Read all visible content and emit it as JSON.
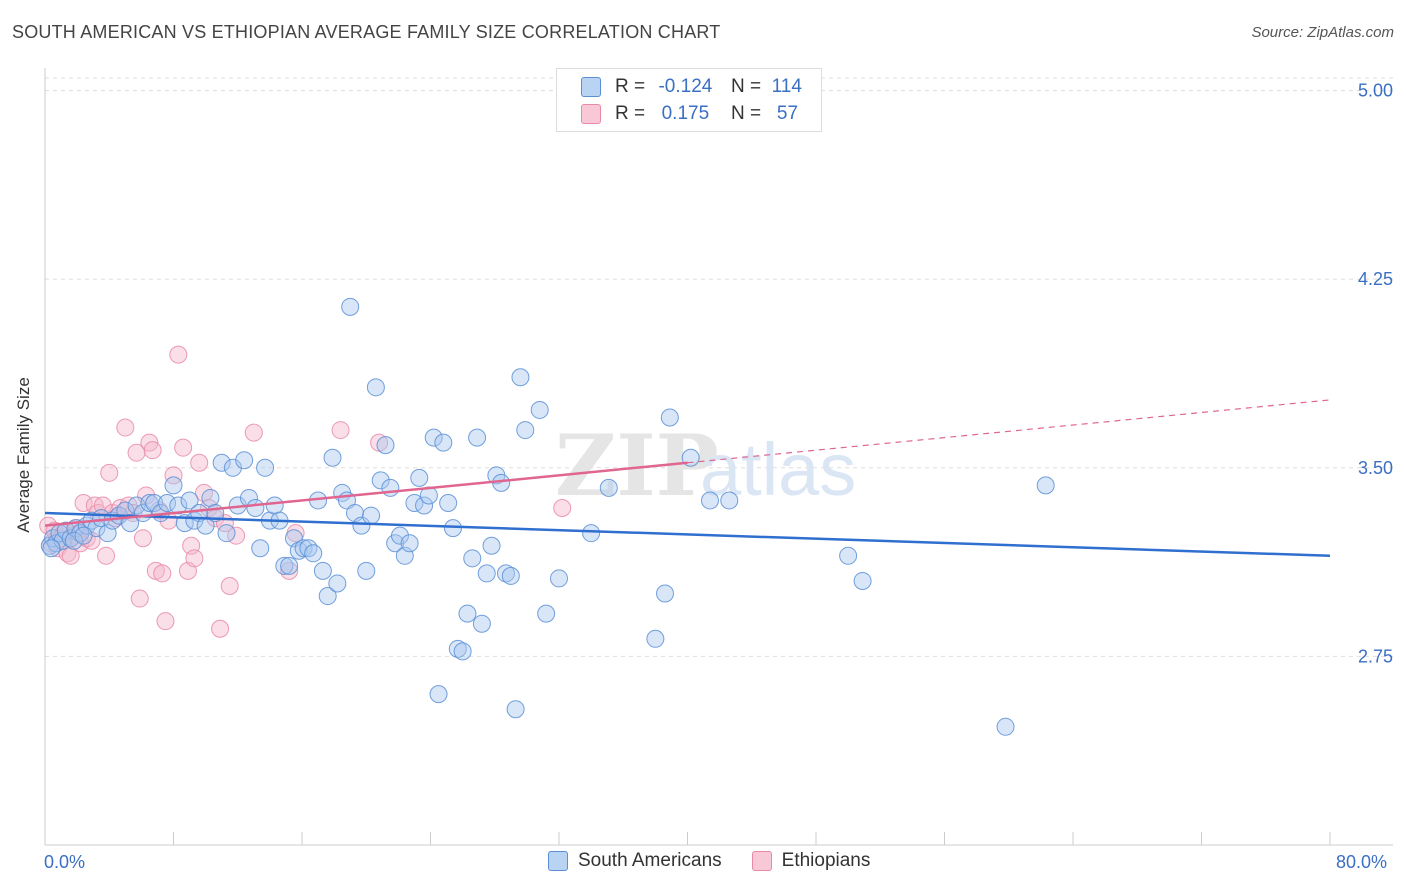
{
  "title": "SOUTH AMERICAN VS ETHIOPIAN AVERAGE FAMILY SIZE CORRELATION CHART",
  "source": "Source: ZipAtlas.com",
  "watermark": {
    "zip": "ZIP",
    "atlas": "atlas"
  },
  "legend_top": [
    {
      "r_label": "R =",
      "r_value": "-0.124",
      "n_label": "N =",
      "n_value": "114"
    },
    {
      "r_label": "R =",
      "r_value": "0.175",
      "n_label": "N =",
      "n_value": "57"
    }
  ],
  "legend_bottom": [
    "South Americans",
    "Ethiopians"
  ],
  "colors": {
    "blue_fill": "#a9c8ef",
    "blue_stroke": "#5b8fd6",
    "blue_line": "#2f6fd0",
    "pink_fill": "#f5b8cb",
    "pink_stroke": "#e88aa8",
    "pink_line": "#e06690",
    "tick_text": "#3b6fc4",
    "grid": "#dddddd"
  },
  "chart_data": {
    "type": "scatter",
    "title": "SOUTH AMERICAN VS ETHIOPIAN AVERAGE FAMILY SIZE CORRELATION CHART",
    "xlabel": "",
    "ylabel": "Average Family Size",
    "xlim": [
      0,
      80
    ],
    "ylim": [
      2.0,
      5.05
    ],
    "x_tick_labels": [
      "0.0%",
      "80.0%"
    ],
    "y_ticks": [
      2.75,
      3.5,
      4.25,
      5.0
    ],
    "y_tick_labels": [
      "2.75",
      "3.50",
      "4.25",
      "5.00"
    ],
    "grid": true,
    "legend_placement": "top-center",
    "series": [
      {
        "name": "South Americans",
        "r": -0.124,
        "n": 114,
        "trend": {
          "x": [
            0,
            80
          ],
          "y": [
            3.32,
            3.15
          ]
        },
        "points": [
          [
            0.3,
            3.19
          ],
          [
            0.5,
            3.22
          ],
          [
            0.7,
            3.2
          ],
          [
            0.9,
            3.24
          ],
          [
            1.1,
            3.21
          ],
          [
            1.3,
            3.25
          ],
          [
            1.6,
            3.22
          ],
          [
            1.9,
            3.26
          ],
          [
            2.2,
            3.24
          ],
          [
            2.6,
            3.27
          ],
          [
            2.9,
            3.29
          ],
          [
            3.2,
            3.26
          ],
          [
            3.5,
            3.3
          ],
          [
            3.9,
            3.24
          ],
          [
            4.2,
            3.29
          ],
          [
            4.6,
            3.31
          ],
          [
            5.0,
            3.33
          ],
          [
            5.3,
            3.28
          ],
          [
            5.7,
            3.35
          ],
          [
            6.1,
            3.32
          ],
          [
            6.5,
            3.36
          ],
          [
            6.8,
            3.36
          ],
          [
            7.2,
            3.32
          ],
          [
            7.6,
            3.36
          ],
          [
            8.0,
            3.43
          ],
          [
            8.3,
            3.35
          ],
          [
            8.7,
            3.28
          ],
          [
            9.0,
            3.37
          ],
          [
            9.3,
            3.29
          ],
          [
            9.6,
            3.32
          ],
          [
            10.0,
            3.27
          ],
          [
            10.3,
            3.38
          ],
          [
            10.6,
            3.32
          ],
          [
            11.0,
            3.52
          ],
          [
            11.3,
            3.24
          ],
          [
            11.7,
            3.5
          ],
          [
            12.0,
            3.35
          ],
          [
            12.4,
            3.53
          ],
          [
            12.7,
            3.38
          ],
          [
            13.1,
            3.34
          ],
          [
            13.4,
            3.18
          ],
          [
            13.7,
            3.5
          ],
          [
            14.0,
            3.29
          ],
          [
            14.3,
            3.35
          ],
          [
            14.6,
            3.29
          ],
          [
            14.9,
            3.11
          ],
          [
            15.2,
            3.11
          ],
          [
            15.5,
            3.22
          ],
          [
            15.8,
            3.17
          ],
          [
            16.1,
            3.18
          ],
          [
            16.4,
            3.18
          ],
          [
            16.7,
            3.16
          ],
          [
            17.0,
            3.37
          ],
          [
            17.3,
            3.09
          ],
          [
            17.6,
            2.99
          ],
          [
            17.9,
            3.54
          ],
          [
            18.2,
            3.04
          ],
          [
            18.5,
            3.4
          ],
          [
            18.8,
            3.37
          ],
          [
            19.0,
            4.14
          ],
          [
            19.3,
            3.32
          ],
          [
            19.7,
            3.27
          ],
          [
            20.0,
            3.09
          ],
          [
            20.3,
            3.31
          ],
          [
            20.6,
            3.82
          ],
          [
            20.9,
            3.45
          ],
          [
            21.2,
            3.59
          ],
          [
            21.5,
            3.42
          ],
          [
            21.8,
            3.2
          ],
          [
            22.1,
            3.23
          ],
          [
            22.4,
            3.15
          ],
          [
            22.7,
            3.2
          ],
          [
            23.0,
            3.36
          ],
          [
            23.3,
            3.46
          ],
          [
            23.6,
            3.35
          ],
          [
            23.9,
            3.39
          ],
          [
            24.2,
            3.62
          ],
          [
            24.5,
            2.6
          ],
          [
            24.8,
            3.6
          ],
          [
            25.1,
            3.36
          ],
          [
            25.4,
            3.26
          ],
          [
            25.7,
            2.78
          ],
          [
            26.0,
            2.77
          ],
          [
            26.3,
            2.92
          ],
          [
            26.6,
            3.14
          ],
          [
            26.9,
            3.62
          ],
          [
            27.2,
            2.88
          ],
          [
            27.5,
            3.08
          ],
          [
            27.8,
            3.19
          ],
          [
            28.1,
            3.47
          ],
          [
            28.4,
            3.44
          ],
          [
            28.7,
            3.08
          ],
          [
            29.0,
            3.07
          ],
          [
            29.3,
            2.54
          ],
          [
            29.6,
            3.86
          ],
          [
            29.9,
            3.65
          ],
          [
            30.8,
            3.73
          ],
          [
            31.2,
            2.92
          ],
          [
            32.0,
            3.06
          ],
          [
            34.0,
            3.24
          ],
          [
            35.1,
            3.42
          ],
          [
            38.0,
            2.82
          ],
          [
            38.6,
            3.0
          ],
          [
            38.9,
            3.7
          ],
          [
            40.2,
            3.54
          ],
          [
            41.4,
            3.37
          ],
          [
            42.6,
            3.37
          ],
          [
            50.0,
            3.15
          ],
          [
            50.9,
            3.05
          ],
          [
            62.3,
            3.43
          ],
          [
            59.8,
            2.47
          ],
          [
            1.8,
            3.21
          ],
          [
            0.4,
            3.18
          ],
          [
            2.4,
            3.23
          ]
        ]
      },
      {
        "name": "Ethiopians",
        "r": 0.175,
        "n": 57,
        "trend": {
          "x": [
            0,
            40
          ],
          "y": [
            3.27,
            3.52
          ]
        },
        "trend_dashed": {
          "x": [
            40,
            80
          ],
          "y": [
            3.52,
            3.77
          ]
        },
        "points": [
          [
            0.2,
            3.27
          ],
          [
            0.4,
            3.2
          ],
          [
            0.6,
            3.25
          ],
          [
            0.8,
            3.18
          ],
          [
            1.0,
            3.22
          ],
          [
            1.2,
            3.24
          ],
          [
            1.4,
            3.16
          ],
          [
            1.6,
            3.15
          ],
          [
            1.8,
            3.23
          ],
          [
            2.0,
            3.26
          ],
          [
            2.2,
            3.2
          ],
          [
            2.4,
            3.36
          ],
          [
            2.6,
            3.22
          ],
          [
            2.9,
            3.21
          ],
          [
            3.1,
            3.35
          ],
          [
            3.3,
            3.32
          ],
          [
            3.6,
            3.35
          ],
          [
            3.8,
            3.15
          ],
          [
            4.0,
            3.48
          ],
          [
            4.2,
            3.32
          ],
          [
            4.4,
            3.3
          ],
          [
            4.7,
            3.34
          ],
          [
            5.0,
            3.66
          ],
          [
            5.2,
            3.35
          ],
          [
            5.5,
            3.32
          ],
          [
            5.7,
            3.56
          ],
          [
            5.9,
            2.98
          ],
          [
            6.1,
            3.22
          ],
          [
            6.3,
            3.39
          ],
          [
            6.5,
            3.6
          ],
          [
            6.7,
            3.57
          ],
          [
            6.9,
            3.09
          ],
          [
            7.1,
            3.33
          ],
          [
            7.3,
            3.08
          ],
          [
            7.5,
            2.89
          ],
          [
            7.7,
            3.29
          ],
          [
            8.0,
            3.47
          ],
          [
            8.3,
            3.95
          ],
          [
            8.6,
            3.58
          ],
          [
            8.9,
            3.09
          ],
          [
            9.1,
            3.19
          ],
          [
            9.3,
            3.14
          ],
          [
            9.6,
            3.52
          ],
          [
            9.9,
            3.4
          ],
          [
            10.2,
            3.34
          ],
          [
            10.6,
            3.3
          ],
          [
            10.9,
            2.86
          ],
          [
            11.2,
            3.28
          ],
          [
            11.5,
            3.03
          ],
          [
            11.9,
            3.23
          ],
          [
            13.0,
            3.64
          ],
          [
            15.2,
            3.09
          ],
          [
            15.6,
            3.24
          ],
          [
            18.4,
            3.65
          ],
          [
            20.8,
            3.6
          ],
          [
            32.2,
            3.34
          ],
          [
            2.1,
            3.24
          ]
        ]
      }
    ]
  }
}
